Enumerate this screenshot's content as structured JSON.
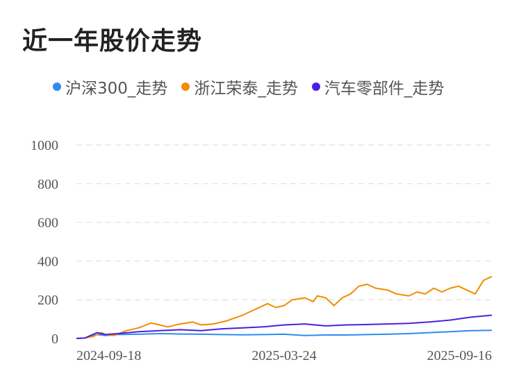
{
  "title": "近一年股价走势",
  "chart_data": {
    "type": "line",
    "legend_position": "top",
    "grid": true,
    "ylim": [
      0,
      1000
    ],
    "yticks": [
      "0",
      "200",
      "400",
      "600",
      "800",
      "1000"
    ],
    "xticks": [
      "2024-09-18",
      "2025-03-24",
      "2025-09-16"
    ],
    "series": [
      {
        "name": "沪深300_走势",
        "color": "#2E8BEF",
        "points": [
          [
            0,
            0
          ],
          [
            0.02,
            2
          ],
          [
            0.05,
            20
          ],
          [
            0.07,
            15
          ],
          [
            0.1,
            20
          ],
          [
            0.15,
            22
          ],
          [
            0.2,
            25
          ],
          [
            0.25,
            23
          ],
          [
            0.3,
            22
          ],
          [
            0.35,
            20
          ],
          [
            0.4,
            19
          ],
          [
            0.45,
            20
          ],
          [
            0.5,
            22
          ],
          [
            0.53,
            18
          ],
          [
            0.55,
            15
          ],
          [
            0.6,
            18
          ],
          [
            0.65,
            18
          ],
          [
            0.7,
            20
          ],
          [
            0.75,
            22
          ],
          [
            0.8,
            25
          ],
          [
            0.85,
            30
          ],
          [
            0.9,
            35
          ],
          [
            0.95,
            40
          ],
          [
            1,
            42
          ]
        ]
      },
      {
        "name": "浙江荣泰_走势",
        "color": "#F28C00",
        "points": [
          [
            0,
            0
          ],
          [
            0.02,
            2
          ],
          [
            0.04,
            10
          ],
          [
            0.06,
            30
          ],
          [
            0.07,
            20
          ],
          [
            0.09,
            15
          ],
          [
            0.12,
            40
          ],
          [
            0.15,
            55
          ],
          [
            0.18,
            80
          ],
          [
            0.2,
            70
          ],
          [
            0.22,
            60
          ],
          [
            0.25,
            75
          ],
          [
            0.28,
            85
          ],
          [
            0.3,
            70
          ],
          [
            0.33,
            75
          ],
          [
            0.36,
            90
          ],
          [
            0.4,
            120
          ],
          [
            0.43,
            150
          ],
          [
            0.46,
            180
          ],
          [
            0.48,
            160
          ],
          [
            0.5,
            170
          ],
          [
            0.52,
            200
          ],
          [
            0.55,
            210
          ],
          [
            0.57,
            190
          ],
          [
            0.58,
            220
          ],
          [
            0.6,
            210
          ],
          [
            0.62,
            170
          ],
          [
            0.64,
            210
          ],
          [
            0.66,
            230
          ],
          [
            0.68,
            270
          ],
          [
            0.7,
            280
          ],
          [
            0.72,
            260
          ],
          [
            0.75,
            250
          ],
          [
            0.77,
            230
          ],
          [
            0.8,
            220
          ],
          [
            0.82,
            240
          ],
          [
            0.84,
            230
          ],
          [
            0.86,
            260
          ],
          [
            0.88,
            240
          ],
          [
            0.9,
            260
          ],
          [
            0.92,
            270
          ],
          [
            0.94,
            250
          ],
          [
            0.96,
            230
          ],
          [
            0.98,
            300
          ],
          [
            1,
            320
          ]
        ]
      },
      {
        "name": "汽车零部件_走势",
        "color": "#4A1FE0",
        "points": [
          [
            0,
            0
          ],
          [
            0.02,
            2
          ],
          [
            0.05,
            30
          ],
          [
            0.07,
            20
          ],
          [
            0.1,
            25
          ],
          [
            0.15,
            35
          ],
          [
            0.2,
            40
          ],
          [
            0.25,
            45
          ],
          [
            0.3,
            40
          ],
          [
            0.35,
            50
          ],
          [
            0.4,
            55
          ],
          [
            0.45,
            60
          ],
          [
            0.5,
            70
          ],
          [
            0.55,
            75
          ],
          [
            0.6,
            65
          ],
          [
            0.65,
            70
          ],
          [
            0.7,
            72
          ],
          [
            0.75,
            75
          ],
          [
            0.8,
            78
          ],
          [
            0.85,
            85
          ],
          [
            0.9,
            95
          ],
          [
            0.95,
            110
          ],
          [
            1,
            120
          ]
        ]
      }
    ]
  }
}
